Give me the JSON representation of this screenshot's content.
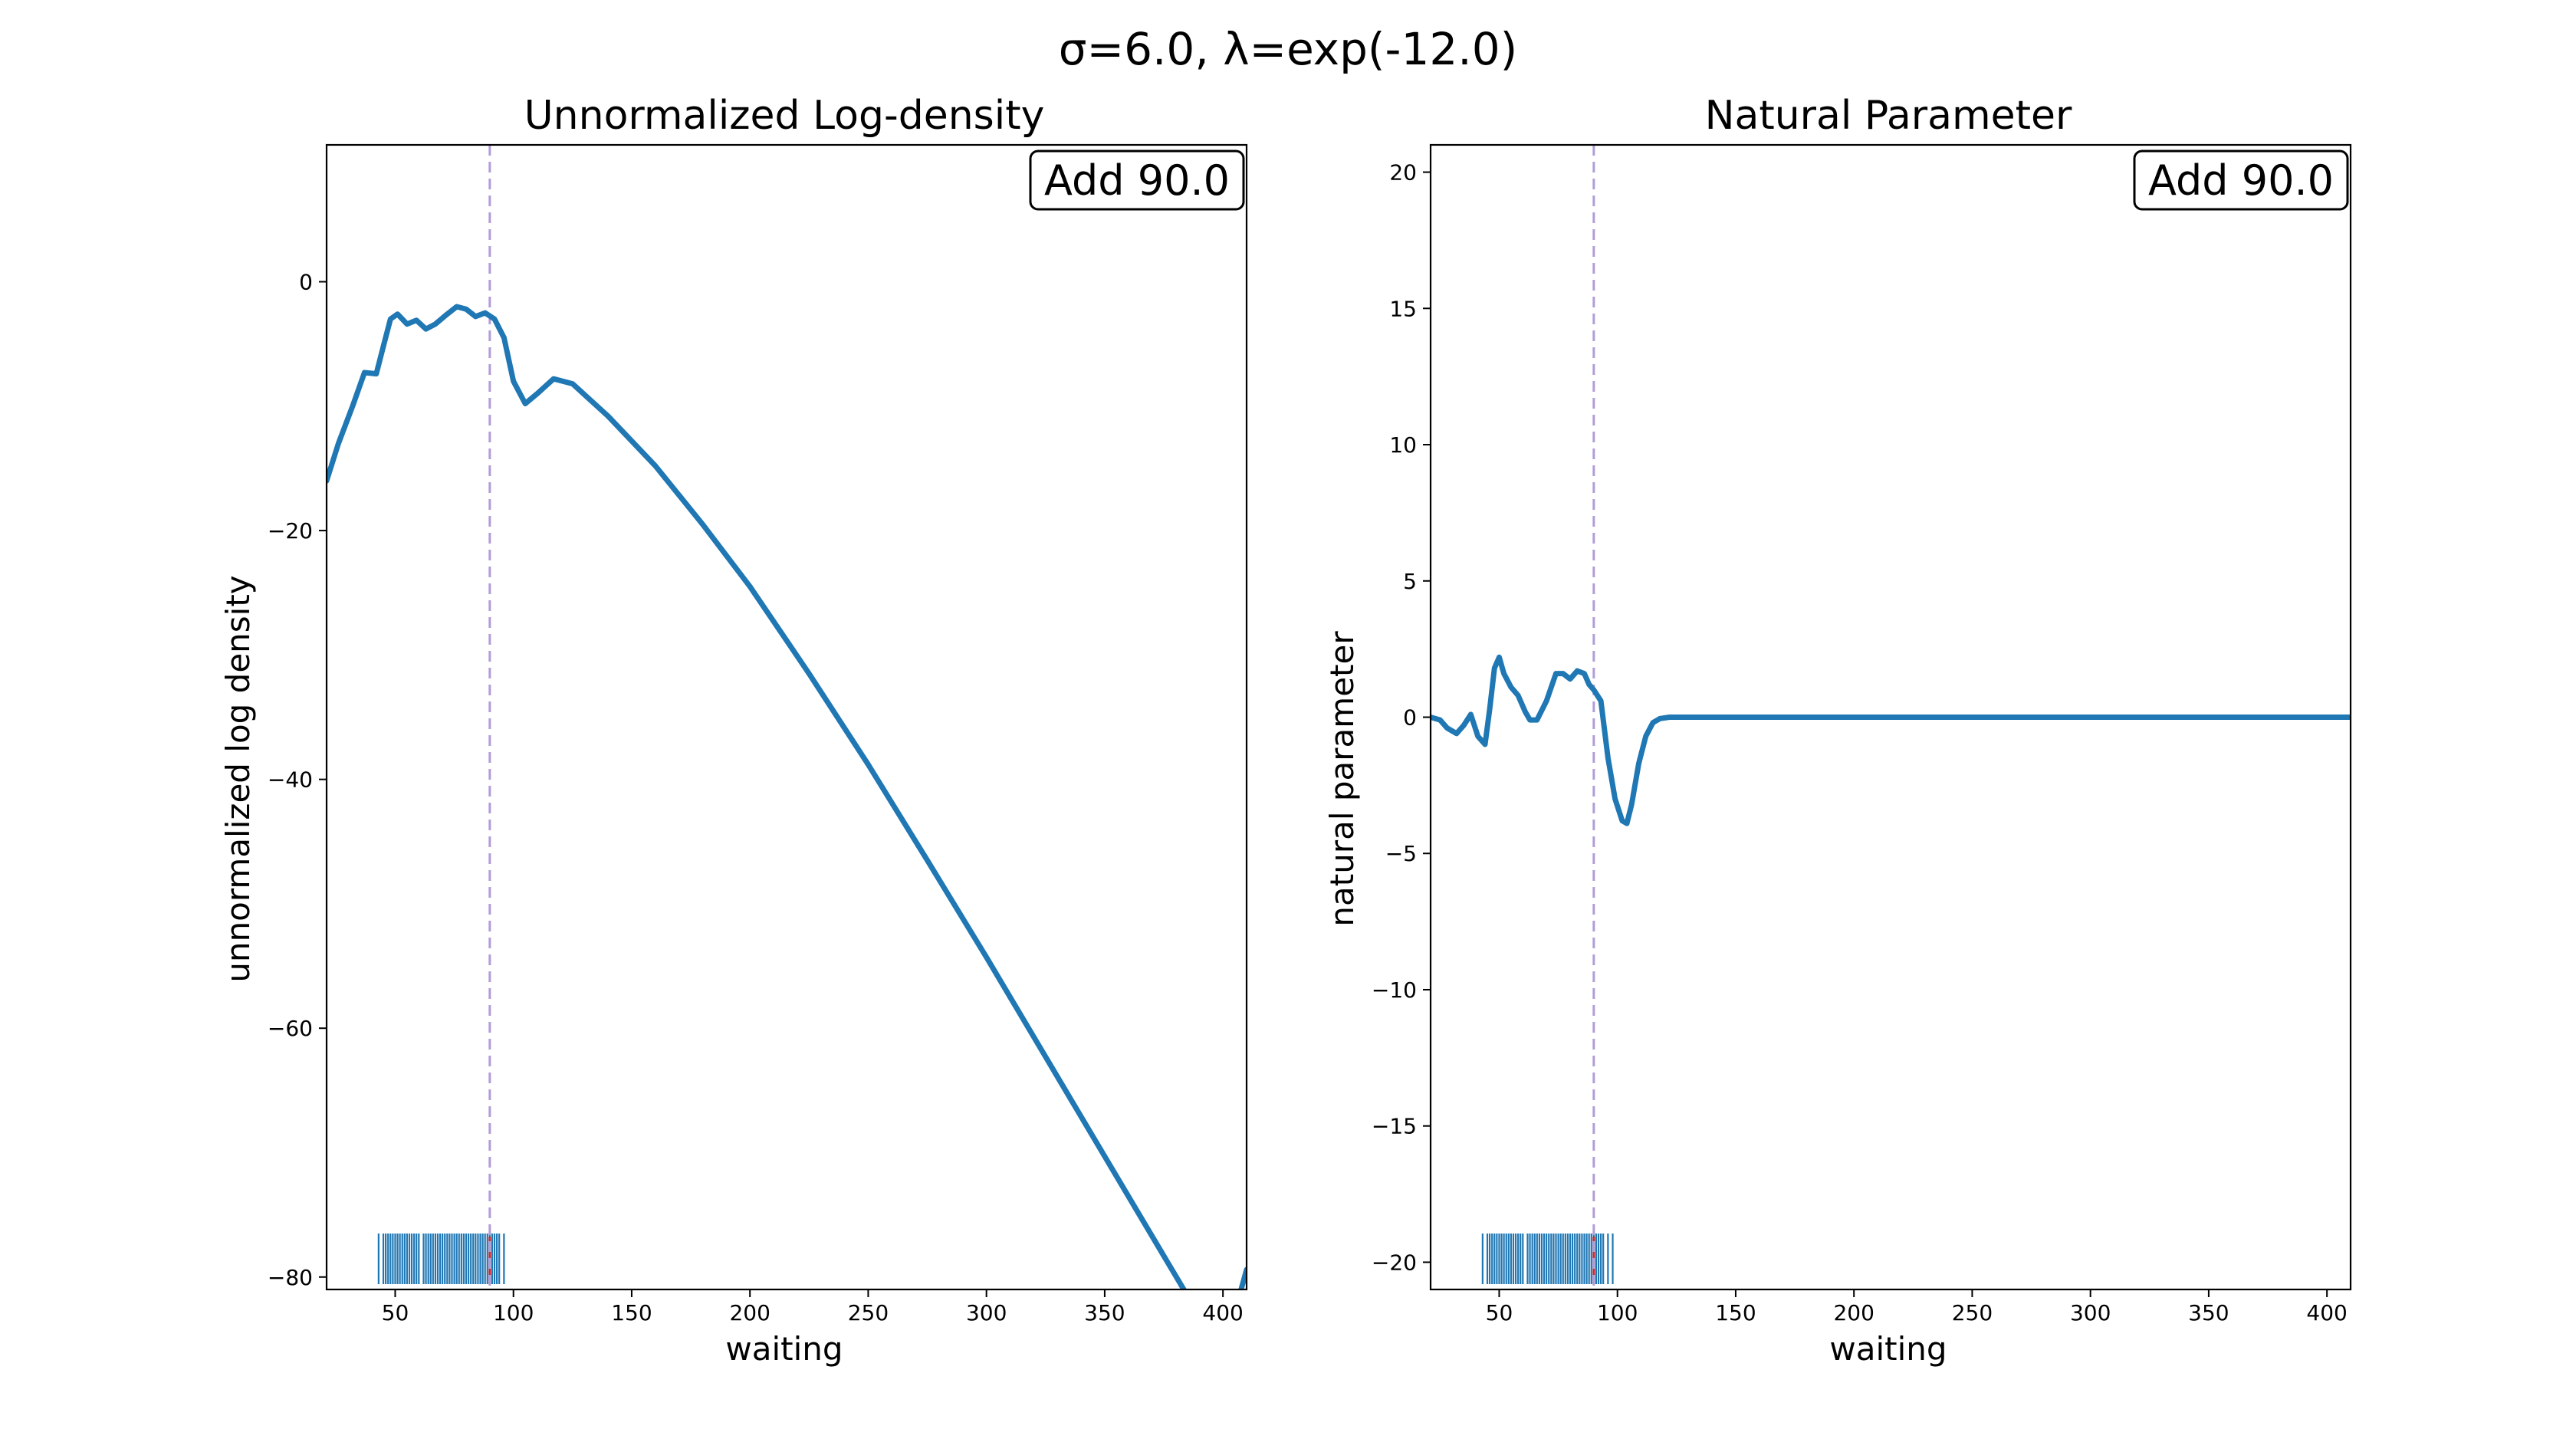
{
  "figure": {
    "title": "σ=6.0, λ=exp(-12.0)"
  },
  "chart_data": [
    {
      "type": "line",
      "title": "Unnormalized Log-density",
      "xlabel": "waiting",
      "ylabel": "unnormalized log density",
      "xlim": [
        21,
        410
      ],
      "ylim": [
        -81,
        11
      ],
      "xticks": [
        50,
        100,
        150,
        200,
        250,
        300,
        350,
        400
      ],
      "yticks": [
        0,
        -20,
        -40,
        -60,
        -80
      ],
      "grid": false,
      "annotation": "Add 90.0",
      "vline_x": 90,
      "series": [
        {
          "x": [
            21,
            26,
            32,
            37,
            42,
            45,
            48,
            51,
            55,
            59,
            63,
            67,
            72,
            76,
            80,
            84,
            88,
            92,
            96,
            100,
            105,
            110,
            117,
            125,
            140,
            160,
            180,
            200,
            225,
            250,
            275,
            300,
            325,
            350,
            375,
            400,
            410
          ],
          "values": [
            -16,
            -13,
            -10,
            -7.3,
            -7.4,
            -5.2,
            -3,
            -2.6,
            -3.4,
            -3.1,
            -3.8,
            -3.4,
            -2.6,
            -2,
            -2.2,
            -2.8,
            -2.5,
            -3,
            -4.5,
            -8,
            -9.8,
            -9,
            -7.8,
            -8.2,
            -10.8,
            -14.8,
            -19.5,
            -24.5,
            -31.5,
            -38.8,
            -46.5,
            -54.3,
            -62.3,
            -70.3,
            -78.3,
            -86.3,
            -79.4
          ]
        }
      ],
      "rug_x": [
        43,
        45,
        46,
        47,
        48,
        49,
        50,
        51,
        52,
        53,
        54,
        55,
        56,
        57,
        58,
        59,
        60,
        62,
        63,
        64,
        65,
        66,
        67,
        68,
        69,
        70,
        71,
        72,
        73,
        74,
        75,
        76,
        77,
        78,
        79,
        80,
        81,
        82,
        83,
        84,
        85,
        86,
        87,
        88,
        89,
        90,
        91,
        92,
        93,
        94,
        96
      ]
    },
    {
      "type": "line",
      "title": "Natural Parameter",
      "xlabel": "waiting",
      "ylabel": "natural parameter",
      "xlim": [
        21,
        410
      ],
      "ylim": [
        -21,
        21
      ],
      "xticks": [
        50,
        100,
        150,
        200,
        250,
        300,
        350,
        400
      ],
      "yticks": [
        20,
        15,
        10,
        5,
        0,
        -5,
        -10,
        -15,
        -20
      ],
      "grid": false,
      "annotation": "Add 90.0",
      "vline_x": 90,
      "series": [
        {
          "x": [
            21,
            25,
            28,
            32,
            35,
            38,
            41,
            44,
            46,
            48,
            50,
            52,
            55,
            58,
            61,
            63,
            66,
            70,
            74,
            77,
            80,
            83,
            86,
            88,
            90,
            93,
            96,
            99,
            102,
            104,
            106,
            109,
            112,
            115,
            118,
            122,
            130,
            160,
            200,
            250,
            300,
            350,
            410
          ],
          "values": [
            0,
            -0.1,
            -0.4,
            -0.6,
            -0.3,
            0.1,
            -0.7,
            -1,
            0.3,
            1.8,
            2.2,
            1.6,
            1.1,
            0.8,
            0.2,
            -0.1,
            -0.1,
            0.6,
            1.6,
            1.6,
            1.4,
            1.7,
            1.6,
            1.2,
            1,
            0.6,
            -1.5,
            -3,
            -3.8,
            -3.9,
            -3.2,
            -1.7,
            -0.7,
            -0.2,
            -0.05,
            0,
            0,
            0,
            0,
            0,
            0,
            0,
            0
          ]
        }
      ],
      "rug_x": [
        43,
        45,
        46,
        47,
        48,
        49,
        50,
        51,
        52,
        53,
        54,
        55,
        56,
        57,
        58,
        59,
        60,
        62,
        63,
        64,
        65,
        66,
        67,
        68,
        69,
        70,
        71,
        72,
        73,
        74,
        75,
        76,
        77,
        78,
        79,
        80,
        81,
        82,
        83,
        84,
        85,
        86,
        87,
        88,
        89,
        90,
        91,
        92,
        93,
        94,
        96,
        98
      ]
    }
  ],
  "colors": {
    "curve": "#1f77b4",
    "rug": "#1f77b4",
    "vline": "#b19cd9",
    "rug_marker": "#d62728"
  }
}
